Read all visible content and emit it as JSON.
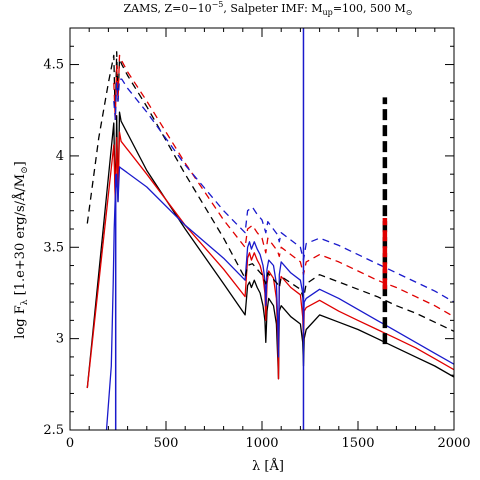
{
  "chart_data": {
    "type": "line",
    "title_parts": [
      "ZAMS, Z=0−10",
      "−5",
      ", Salpeter IMF: M",
      "up",
      "=100, 500 M",
      "⊙"
    ],
    "xlabel": "λ  [Å]",
    "ylabel_parts": [
      "log F",
      "λ",
      "  [1.e+30 erg/s/Å/M",
      "⊙",
      "]"
    ],
    "xlim": [
      0,
      2000
    ],
    "ylim": [
      2.5,
      4.7
    ],
    "xticks": [
      0,
      500,
      1000,
      1500,
      2000
    ],
    "yticks": [
      2.5,
      3,
      3.5,
      4,
      4.5
    ],
    "grid": false,
    "legend": "none",
    "series": [
      {
        "color": "#000000",
        "dash": "solid",
        "x": [
          90,
          228,
          236,
          243,
          250,
          258,
          266,
          400,
          600,
          800,
          912,
          925,
          935,
          945,
          960,
          975,
          990,
          1005,
          1015,
          1020,
          1026,
          1035,
          1060,
          1075,
          1082,
          1086,
          1090,
          1100,
          1150,
          1200,
          1212,
          1216,
          1220,
          1230,
          1300,
          1400,
          1500,
          1600,
          1700,
          1800,
          1900,
          2000
        ],
        "y": [
          2.73,
          4.18,
          3.75,
          4.22,
          3.75,
          4.24,
          4.19,
          3.92,
          3.6,
          3.3,
          3.13,
          3.29,
          3.31,
          3.28,
          3.32,
          3.28,
          3.25,
          3.18,
          3.1,
          2.98,
          3.15,
          3.22,
          3.18,
          3.08,
          2.9,
          2.78,
          3.15,
          3.18,
          3.12,
          3.08,
          2.98,
          2.85,
          3.0,
          3.05,
          3.13,
          3.09,
          3.05,
          3.0,
          2.95,
          2.9,
          2.85,
          2.79
        ]
      },
      {
        "color": "#e00000",
        "dash": "solid",
        "x": [
          90,
          228,
          236,
          243,
          250,
          258,
          266,
          400,
          600,
          800,
          912,
          925,
          935,
          945,
          960,
          975,
          990,
          1005,
          1015,
          1020,
          1026,
          1035,
          1060,
          1075,
          1082,
          1086,
          1090,
          1100,
          1150,
          1200,
          1212,
          1216,
          1220,
          1230,
          1300,
          1400,
          1500,
          1600,
          1700,
          1800,
          1900,
          2000
        ],
        "y": [
          2.73,
          4.06,
          3.75,
          4.1,
          3.8,
          4.13,
          4.08,
          3.9,
          3.62,
          3.38,
          3.23,
          3.44,
          3.47,
          3.43,
          3.47,
          3.43,
          3.4,
          3.34,
          3.25,
          3.1,
          3.3,
          3.37,
          3.33,
          3.22,
          3.0,
          2.78,
          3.28,
          3.34,
          3.28,
          3.24,
          3.12,
          2.98,
          3.15,
          3.17,
          3.21,
          3.15,
          3.1,
          3.05,
          3.0,
          2.95,
          2.89,
          2.83
        ]
      },
      {
        "color": "#1a1acc",
        "dash": "solid",
        "x": [
          190,
          215,
          225,
          230,
          235,
          243,
          250,
          258,
          270,
          400,
          600,
          800,
          912,
          925,
          935,
          945,
          960,
          975,
          990,
          1005,
          1015,
          1020,
          1026,
          1035,
          1060,
          1075,
          1082,
          1086,
          1090,
          1100,
          1150,
          1200,
          1212,
          1216,
          1220,
          1230,
          1300,
          1400,
          1500,
          1600,
          1700,
          1800,
          1900,
          2000
        ],
        "y": [
          2.5,
          2.85,
          3.3,
          3.6,
          3.75,
          3.9,
          3.75,
          3.94,
          3.93,
          3.83,
          3.62,
          3.44,
          3.32,
          3.5,
          3.53,
          3.49,
          3.53,
          3.49,
          3.46,
          3.4,
          3.32,
          3.18,
          3.38,
          3.43,
          3.4,
          3.3,
          3.1,
          2.9,
          3.35,
          3.42,
          3.36,
          3.32,
          3.25,
          3.1,
          3.2,
          3.22,
          3.27,
          3.22,
          3.16,
          3.1,
          3.04,
          2.98,
          2.92,
          2.86
        ]
      },
      {
        "color": "#000000",
        "dash": "dashed",
        "x": [
          90,
          150,
          200,
          228,
          236,
          243,
          250,
          258,
          270,
          300,
          400,
          600,
          800,
          912,
          925,
          950,
          975,
          1000,
          1020,
          1030,
          1080,
          1090,
          1100,
          1200,
          1216,
          1230,
          1300,
          1400,
          1500,
          1600,
          1700,
          1800,
          1900,
          2000
        ],
        "y": [
          3.63,
          4.1,
          4.4,
          4.55,
          4.2,
          4.57,
          4.3,
          4.53,
          4.5,
          4.44,
          4.27,
          3.9,
          3.55,
          3.33,
          3.4,
          3.41,
          3.38,
          3.35,
          3.3,
          3.36,
          3.3,
          3.28,
          3.34,
          3.27,
          3.22,
          3.3,
          3.35,
          3.31,
          3.27,
          3.23,
          3.18,
          3.14,
          3.09,
          3.04
        ]
      },
      {
        "color": "#e00000",
        "dash": "dashed",
        "x": [
          228,
          236,
          243,
          250,
          258,
          270,
          300,
          400,
          600,
          800,
          912,
          925,
          950,
          975,
          1000,
          1020,
          1030,
          1080,
          1090,
          1100,
          1200,
          1216,
          1230,
          1300,
          1400,
          1500,
          1600,
          1700,
          1800,
          1900,
          2000
        ],
        "y": [
          4.4,
          4.2,
          4.5,
          4.3,
          4.55,
          4.52,
          4.46,
          4.3,
          3.96,
          3.65,
          3.5,
          3.6,
          3.62,
          3.58,
          3.55,
          3.47,
          3.55,
          3.48,
          3.45,
          3.5,
          3.42,
          3.35,
          3.42,
          3.46,
          3.42,
          3.37,
          3.32,
          3.28,
          3.23,
          3.18,
          3.12
        ]
      },
      {
        "color": "#1a1acc",
        "dash": "dashed",
        "x": [
          228,
          236,
          243,
          250,
          258,
          270,
          300,
          400,
          600,
          800,
          912,
          925,
          950,
          975,
          1000,
          1020,
          1030,
          1080,
          1090,
          1100,
          1200,
          1216,
          1230,
          1300,
          1400,
          1500,
          1600,
          1700,
          1800,
          1900,
          2000
        ],
        "y": [
          4.3,
          4.2,
          4.4,
          4.3,
          4.42,
          4.42,
          4.37,
          4.24,
          3.95,
          3.7,
          3.58,
          3.7,
          3.72,
          3.68,
          3.65,
          3.58,
          3.64,
          3.57,
          3.53,
          3.58,
          3.5,
          3.43,
          3.52,
          3.55,
          3.51,
          3.46,
          3.41,
          3.36,
          3.31,
          3.26,
          3.2
        ]
      }
    ],
    "vlines": [
      {
        "x": 1216,
        "y0": 2.5,
        "y1": 4.7,
        "color": "#1a1acc",
        "dash": "solid",
        "width": 1.5
      },
      {
        "x": 238,
        "y0": 2.5,
        "y1": 3.9,
        "color": "#1a1acc",
        "dash": "solid",
        "width": 1.5
      },
      {
        "x": 1640,
        "y0": 2.97,
        "y1": 4.32,
        "color": "#000000",
        "dash": "thick-dashed",
        "width": 4.5
      },
      {
        "x": 1640,
        "y0": 3.27,
        "y1": 3.66,
        "color": "#e00000",
        "dash": "thick-dashed",
        "width": 4.5
      }
    ]
  }
}
